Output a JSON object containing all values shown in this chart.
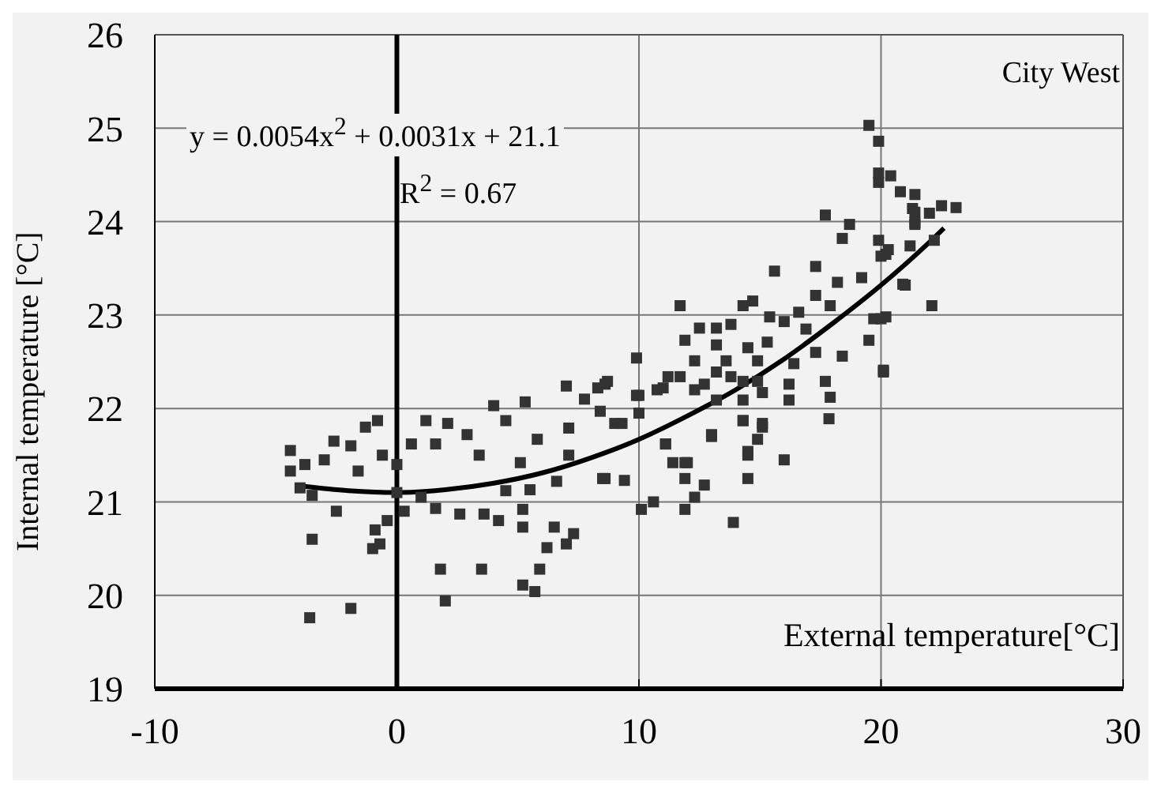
{
  "chart_data": {
    "type": "scatter",
    "xlabel": "External temperature[°C]",
    "ylabel": "Internal temperature [°C]",
    "annotations": [
      "y = 0.0054x$^{2}$ + 0.0031x + 21.1",
      "R$^{2}$ = 0.67",
      "City West"
    ],
    "xlim": [
      -10,
      30
    ],
    "xticks": [
      -10,
      0,
      10,
      20,
      30
    ],
    "ylim": [
      19,
      26
    ],
    "yticks": [
      19,
      20,
      21,
      22,
      23,
      24,
      25,
      26
    ],
    "grid": true,
    "marker": "square",
    "ref_lines": [
      {
        "axis": "x",
        "value": 0,
        "color": "#000000"
      }
    ],
    "series": [
      {
        "type": "scatter",
        "color": "#333333",
        "x": [
          -4.4,
          -4.4,
          -3.8,
          -4.0,
          -3.5,
          -3.5,
          -3.6,
          -1.9,
          -2.5,
          -3.0,
          -2.6,
          -1.9,
          -1.3,
          -1.6,
          -0.8,
          -0.6,
          -0.9,
          -0.7,
          -1.0,
          -0.4,
          0,
          0,
          0.3,
          7.0,
          8.6,
          7.75,
          10.0,
          10.0,
          5.3,
          4.0,
          1.2,
          2.1,
          2.9,
          0.6,
          1.6,
          4.5,
          5.8,
          7.1,
          9.0,
          8.4,
          3.4,
          5.1,
          7.1,
          8.6,
          9.4,
          6.6,
          4.5,
          5.5,
          1.0,
          1.6,
          2.6,
          3.6,
          4.2,
          5.2,
          5.2,
          6.5,
          7.3,
          6.2,
          7.0,
          1.8,
          3.5,
          5.9,
          5.2,
          5.7,
          2.0,
          10.1,
          10.6,
          11.9,
          12.3,
          12.7,
          11.9,
          11.4,
          12.0,
          11.1,
          13.9,
          14.5,
          13.0,
          14.3,
          15.1,
          14.5,
          11.0,
          11.7,
          12.3,
          13.2,
          14.3,
          15.1,
          17.7,
          18.7,
          18.4,
          19.9,
          21.4,
          21.4,
          20.2,
          15.6,
          17.3,
          18.2,
          19.2,
          21.0,
          17.3,
          11.7,
          14.3,
          14.7,
          16.6,
          17.9,
          15.4,
          12.5,
          13.2,
          13.8,
          16.0,
          16.9,
          19.7,
          20.2,
          19.5,
          11.9,
          13.2,
          14.5,
          15.3,
          17.3,
          18.4,
          12.3,
          13.6,
          14.9,
          16.4,
          20.1,
          11.2,
          10.75,
          12.7,
          13.8,
          14.9,
          17.7,
          16.2,
          16.2,
          17.9,
          13.2,
          14.3,
          9.9,
          9.9,
          8.3,
          8.7,
          9.3,
          14.3,
          15.1,
          17.85,
          13.0,
          14.9,
          11.1,
          14.5,
          16.0,
          11.9,
          8.5,
          19.9,
          20.8,
          21.3,
          22.5,
          21.4,
          22.2,
          21.2,
          20.3,
          20.0,
          20.9,
          22.1,
          20.0,
          20.1,
          19.5,
          19.9,
          19.9,
          20.4,
          21.4,
          23.1,
          22.0
        ],
        "values": [
          21.55,
          21.33,
          21.4,
          21.15,
          21.07,
          20.6,
          19.76,
          19.86,
          20.9,
          21.45,
          21.65,
          21.6,
          21.8,
          21.33,
          21.87,
          21.5,
          20.7,
          20.55,
          20.5,
          20.8,
          21.4,
          21.1,
          20.9,
          22.24,
          22.26,
          22.1,
          22.14,
          21.95,
          22.07,
          22.03,
          21.87,
          21.84,
          21.72,
          21.62,
          21.62,
          21.87,
          21.67,
          21.79,
          21.84,
          21.97,
          21.5,
          21.42,
          21.5,
          21.25,
          21.23,
          21.22,
          21.12,
          21.13,
          21.05,
          20.93,
          20.87,
          20.87,
          20.8,
          20.92,
          20.73,
          20.73,
          20.66,
          20.51,
          20.55,
          20.28,
          20.28,
          20.28,
          20.11,
          20.04,
          19.94,
          20.92,
          21.0,
          20.92,
          21.05,
          21.18,
          21.25,
          21.42,
          21.42,
          21.62,
          20.78,
          21.25,
          21.7,
          21.87,
          21.8,
          21.54,
          22.22,
          22.34,
          22.2,
          22.39,
          22.29,
          22.17,
          24.07,
          23.97,
          23.82,
          23.8,
          24.1,
          23.97,
          23.65,
          23.47,
          23.52,
          23.35,
          23.4,
          23.32,
          23.21,
          23.1,
          23.1,
          23.15,
          23.03,
          23.1,
          22.98,
          22.86,
          22.86,
          22.9,
          22.93,
          22.85,
          22.96,
          22.98,
          22.73,
          22.73,
          22.68,
          22.65,
          22.71,
          22.6,
          22.56,
          22.51,
          22.51,
          22.51,
          22.48,
          22.39,
          22.34,
          22.2,
          22.26,
          22.34,
          22.29,
          22.29,
          22.26,
          22.09,
          22.12,
          22.09,
          22.09,
          22.54,
          22.14,
          22.22,
          22.29,
          21.84,
          21.87,
          21.84,
          21.89,
          21.72,
          21.67,
          21.62,
          21.5,
          21.45,
          21.42,
          21.25,
          24.52,
          24.32,
          24.14,
          24.17,
          23.99,
          23.8,
          23.74,
          23.7,
          23.63,
          23.33,
          23.1,
          22.96,
          22.41,
          25.03,
          24.86,
          24.42,
          24.49,
          24.29,
          24.15,
          24.09
        ]
      },
      {
        "type": "line",
        "color": "#000000",
        "marker": "none",
        "x": [
          -4,
          -2,
          0,
          2,
          4,
          6,
          8,
          10,
          12,
          14,
          16,
          18,
          20,
          22,
          22.6
        ],
        "values": [
          21.17,
          21.12,
          21.1,
          21.13,
          21.2,
          21.31,
          21.47,
          21.67,
          21.92,
          22.2,
          22.53,
          22.91,
          23.32,
          23.78,
          23.93
        ]
      }
    ]
  }
}
